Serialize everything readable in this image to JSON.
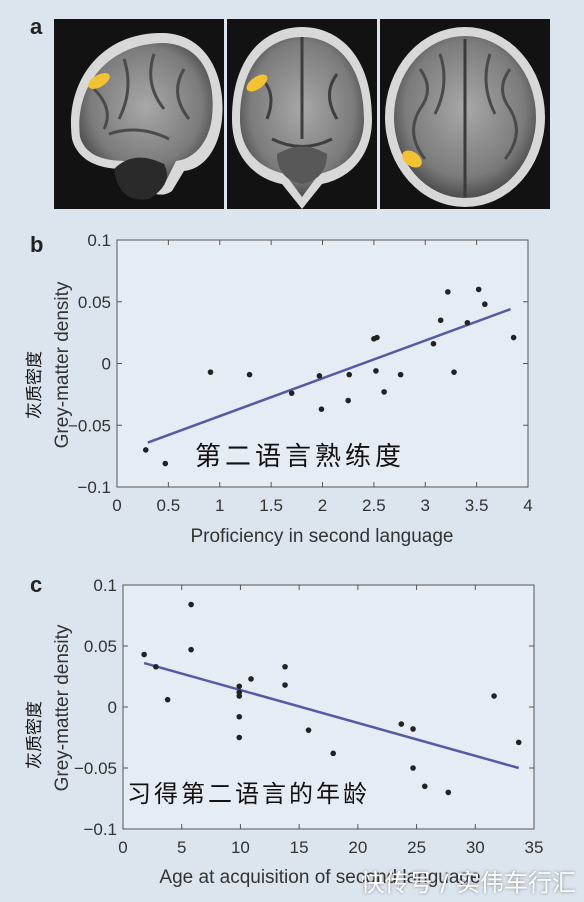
{
  "panels": {
    "a": "a",
    "b": "b",
    "c": "c"
  },
  "mri_views": [
    {
      "name": "sagittal",
      "highlight_color": "#f2c230"
    },
    {
      "name": "coronal",
      "highlight_color": "#f2c230"
    },
    {
      "name": "axial",
      "highlight_color": "#f2c230"
    }
  ],
  "chart_data": [
    {
      "type": "scatter",
      "title": "",
      "xlabel": "Proficiency in second language",
      "ylabel": "Grey-matter density",
      "ylabel_cn": "灰质密度",
      "annotation": "第二语言熟练度",
      "xlim": [
        0,
        4
      ],
      "ylim": [
        -0.1,
        0.1
      ],
      "xticks": [
        "0",
        "0.5",
        "1",
        "1.5",
        "2",
        "2.5",
        "3",
        "3.5",
        "4"
      ],
      "yticks": [
        "0.1",
        "0.05",
        "0",
        "−0.05",
        "−0.1"
      ],
      "grid": false,
      "points": [
        {
          "x": 0.28,
          "y": -0.07
        },
        {
          "x": 0.47,
          "y": -0.081
        },
        {
          "x": 0.91,
          "y": -0.007
        },
        {
          "x": 1.29,
          "y": -0.009
        },
        {
          "x": 1.7,
          "y": -0.024
        },
        {
          "x": 1.97,
          "y": -0.01
        },
        {
          "x": 1.99,
          "y": -0.037
        },
        {
          "x": 2.26,
          "y": -0.009
        },
        {
          "x": 2.25,
          "y": -0.03
        },
        {
          "x": 2.5,
          "y": 0.02
        },
        {
          "x": 2.53,
          "y": 0.021
        },
        {
          "x": 2.52,
          "y": -0.006
        },
        {
          "x": 2.6,
          "y": -0.023
        },
        {
          "x": 2.76,
          "y": -0.009
        },
        {
          "x": 3.08,
          "y": 0.016
        },
        {
          "x": 3.15,
          "y": 0.035
        },
        {
          "x": 3.22,
          "y": 0.058
        },
        {
          "x": 3.28,
          "y": -0.007
        },
        {
          "x": 3.41,
          "y": 0.033
        },
        {
          "x": 3.52,
          "y": 0.06
        },
        {
          "x": 3.58,
          "y": 0.048
        },
        {
          "x": 3.86,
          "y": 0.021
        }
      ],
      "trendline": {
        "x": [
          0.3,
          3.83
        ],
        "y": [
          -0.064,
          0.044
        ],
        "color": "#5559a6"
      }
    },
    {
      "type": "scatter",
      "title": "",
      "xlabel": "Age at acquisition of second language",
      "ylabel": "Grey-matter density",
      "ylabel_cn": "灰质密度",
      "annotation": "习得第二语言的年龄",
      "xlim": [
        0,
        35
      ],
      "ylim": [
        -0.1,
        0.1
      ],
      "xticks": [
        "0",
        "5",
        "10",
        "15",
        "20",
        "25",
        "30",
        "35"
      ],
      "yticks": [
        "0.1",
        "0.05",
        "0",
        "−0.05",
        "−0.1"
      ],
      "grid": false,
      "points": [
        {
          "x": 1.8,
          "y": 0.043
        },
        {
          "x": 2.8,
          "y": 0.033
        },
        {
          "x": 3.8,
          "y": 0.006
        },
        {
          "x": 5.8,
          "y": 0.084
        },
        {
          "x": 5.8,
          "y": 0.047
        },
        {
          "x": 9.9,
          "y": 0.017
        },
        {
          "x": 9.9,
          "y": 0.012
        },
        {
          "x": 9.9,
          "y": 0.009
        },
        {
          "x": 9.9,
          "y": -0.008
        },
        {
          "x": 9.9,
          "y": -0.025
        },
        {
          "x": 10.9,
          "y": 0.023
        },
        {
          "x": 13.8,
          "y": 0.033
        },
        {
          "x": 13.8,
          "y": 0.018
        },
        {
          "x": 15.8,
          "y": -0.019
        },
        {
          "x": 17.9,
          "y": -0.038
        },
        {
          "x": 23.7,
          "y": -0.014
        },
        {
          "x": 24.7,
          "y": -0.018
        },
        {
          "x": 24.7,
          "y": -0.05
        },
        {
          "x": 25.7,
          "y": -0.065
        },
        {
          "x": 27.7,
          "y": -0.07
        },
        {
          "x": 31.6,
          "y": 0.009
        },
        {
          "x": 33.7,
          "y": -0.029
        }
      ],
      "trendline": {
        "x": [
          1.8,
          33.7
        ],
        "y": [
          0.036,
          -0.05
        ],
        "color": "#5559a6"
      }
    }
  ],
  "watermark": "快传号 / 实伟车行汇"
}
